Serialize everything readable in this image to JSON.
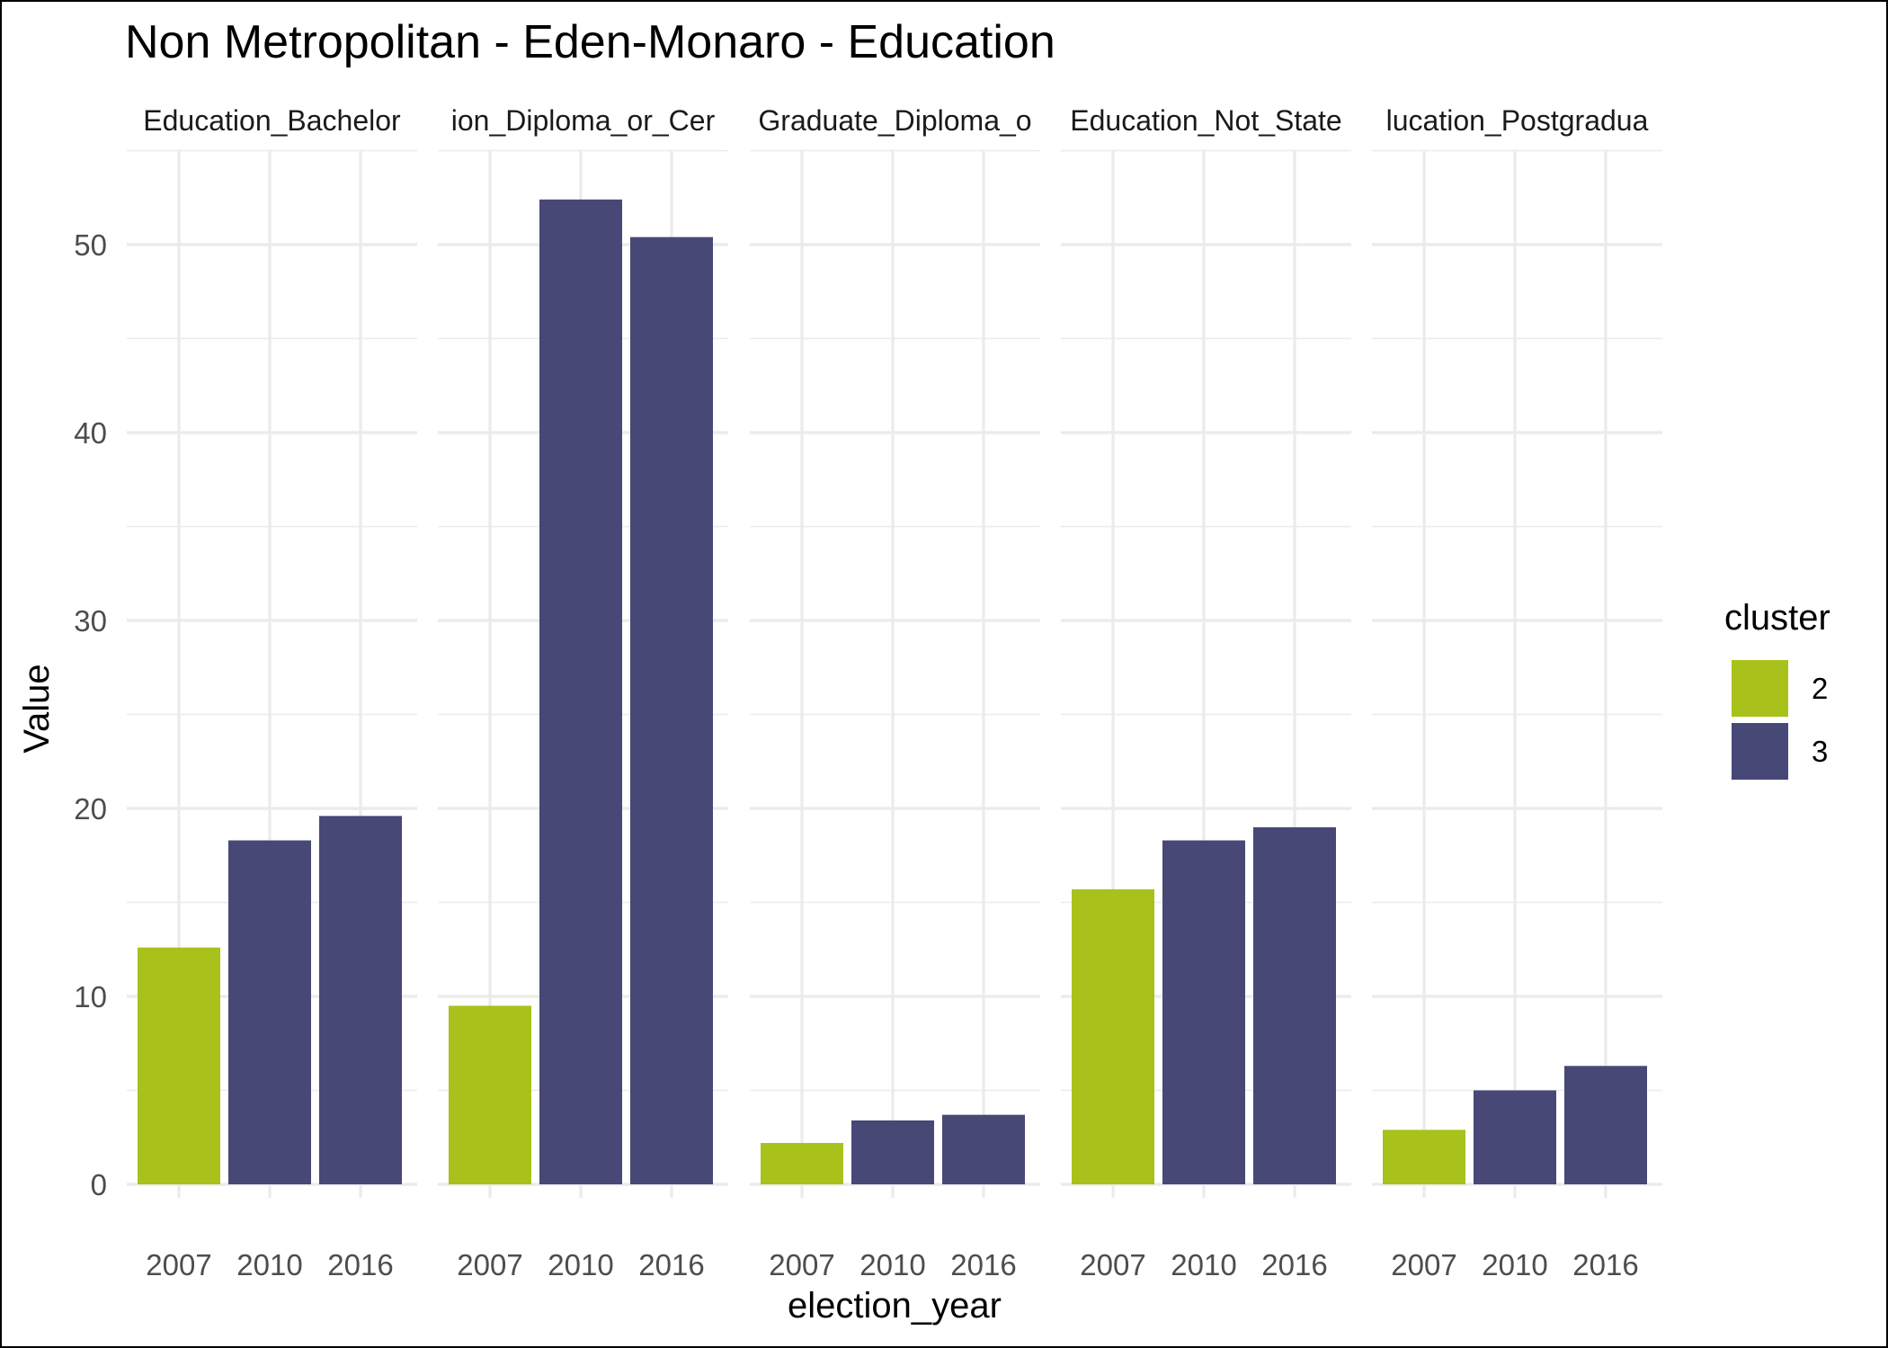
{
  "chart_data": {
    "type": "bar",
    "title": "Non Metropolitan - Eden-Monaro - Education",
    "xlabel": "election_year",
    "ylabel": "Value",
    "ylim": [
      0,
      55
    ],
    "y_ticks": [
      0,
      10,
      20,
      30,
      40,
      50
    ],
    "grid": true,
    "categories": [
      "2007",
      "2010",
      "2016"
    ],
    "panels": [
      {
        "name": "Education_Bachelor",
        "strip_text": "Education_Bachelor",
        "values": [
          12.6,
          18.3,
          19.6
        ],
        "clusters": [
          "2",
          "3",
          "3"
        ]
      },
      {
        "name": "Education_Diploma_or_Certificate",
        "strip_text": "ion_Diploma_or_Cer",
        "values": [
          9.5,
          52.4,
          50.4
        ],
        "clusters": [
          "2",
          "3",
          "3"
        ]
      },
      {
        "name": "Education_Graduate_Diploma_or_Certificate",
        "strip_text": "Graduate_Diploma_o",
        "values": [
          2.2,
          3.4,
          3.7
        ],
        "clusters": [
          "2",
          "3",
          "3"
        ]
      },
      {
        "name": "Education_Not_Stated",
        "strip_text": "Education_Not_State",
        "values": [
          15.7,
          18.3,
          19.0
        ],
        "clusters": [
          "2",
          "3",
          "3"
        ]
      },
      {
        "name": "Education_Postgraduate",
        "strip_text": "lucation_Postgradua",
        "values": [
          2.9,
          5.0,
          6.3
        ],
        "clusters": [
          "2",
          "3",
          "3"
        ]
      }
    ],
    "legend": {
      "title": "cluster",
      "position": "right",
      "items": [
        {
          "label": "2",
          "color": "#a9c11b"
        },
        {
          "label": "3",
          "color": "#474876"
        }
      ]
    }
  }
}
